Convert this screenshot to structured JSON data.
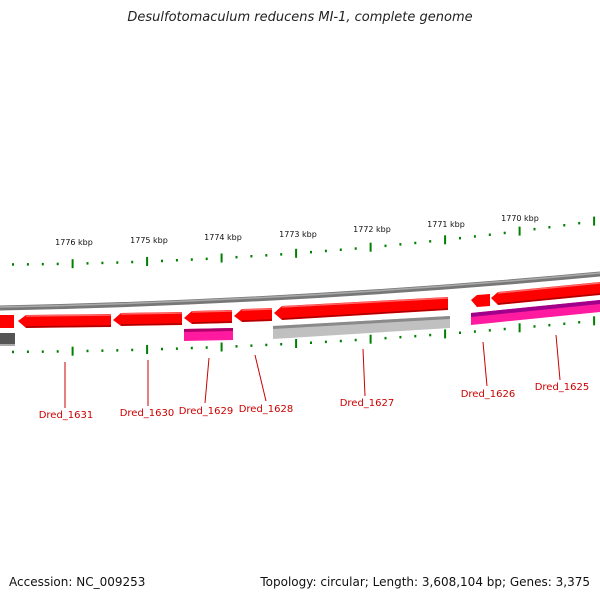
{
  "title": "Desulfotomaculum reducens MI-1, complete genome",
  "footer": {
    "accession": "Accession: NC_009253",
    "topology": "Topology: circular; Length: 3,608,104 bp; Genes: 3,375"
  },
  "colors": {
    "gene_red": "#ff0000",
    "gene_magenta": "#ff1aa0",
    "backbone_gray": "#888888",
    "light_gray": "#bbbbbb",
    "tick_green": "#008000",
    "label_red": "#cc0000"
  },
  "kbp_labels": [
    "1776 kbp",
    "1775 kbp",
    "1774 kbp",
    "1773 kbp",
    "1772 kbp",
    "1771 kbp",
    "1770 kbp"
  ],
  "gene_labels": [
    "Dred_1631",
    "Dred_1630",
    "Dred_1629",
    "Dred_1628",
    "Dred_1627",
    "Dred_1626",
    "Dred_1625"
  ]
}
